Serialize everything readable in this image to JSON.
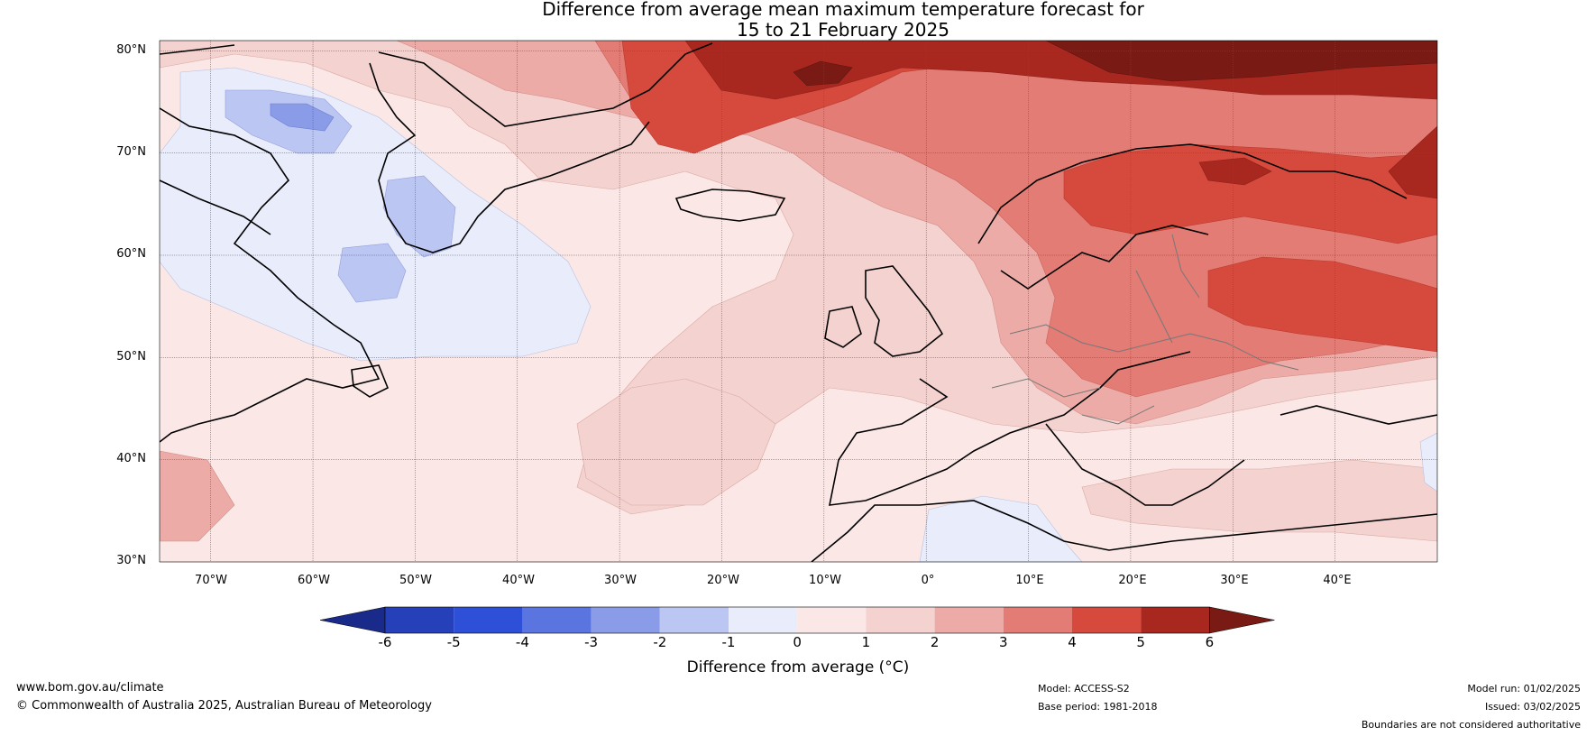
{
  "title": {
    "line1": "Difference from average mean maximum temperature forecast for",
    "line2": "15 to 21 February 2025"
  },
  "map": {
    "lat_labels": [
      "80°N",
      "70°N",
      "60°N",
      "50°N",
      "40°N",
      "30°N"
    ],
    "lon_labels": [
      "70°W",
      "60°W",
      "50°W",
      "40°W",
      "30°W",
      "20°W",
      "10°W",
      "0°",
      "10°E",
      "20°E",
      "30°E",
      "40°E"
    ],
    "extent": {
      "lon": [
        -75,
        50
      ],
      "lat": [
        30,
        81
      ]
    },
    "gridlines": true,
    "base_fill": "#fbe8e6"
  },
  "colorbar": {
    "title": "Difference from average (°C)",
    "ticks": [
      "-6",
      "-5",
      "-4",
      "-3",
      "-2",
      "-1",
      "0",
      "1",
      "2",
      "3",
      "4",
      "5",
      "6"
    ],
    "colors": [
      "#1a2a8a",
      "#2540b8",
      "#2e4fd8",
      "#5a74e0",
      "#8a9ce8",
      "#bcc6f2",
      "#e8ecfb",
      "#fbe8e6",
      "#f4d2cf",
      "#ecaba6",
      "#e27c75",
      "#d64a3e",
      "#a8281f",
      "#7a1a14"
    ]
  },
  "footer": {
    "website": "www.bom.gov.au/climate",
    "copyright": "© Commonwealth of Australia 2025, Australian Bureau of Meteorology",
    "model": "Model: ACCESS-S2",
    "base_period": "Base period: 1981-2018",
    "model_run": "Model run: 01/02/2025",
    "issued": "Issued: 03/02/2025",
    "disclaimer": "Boundaries are not considered authoritative"
  }
}
